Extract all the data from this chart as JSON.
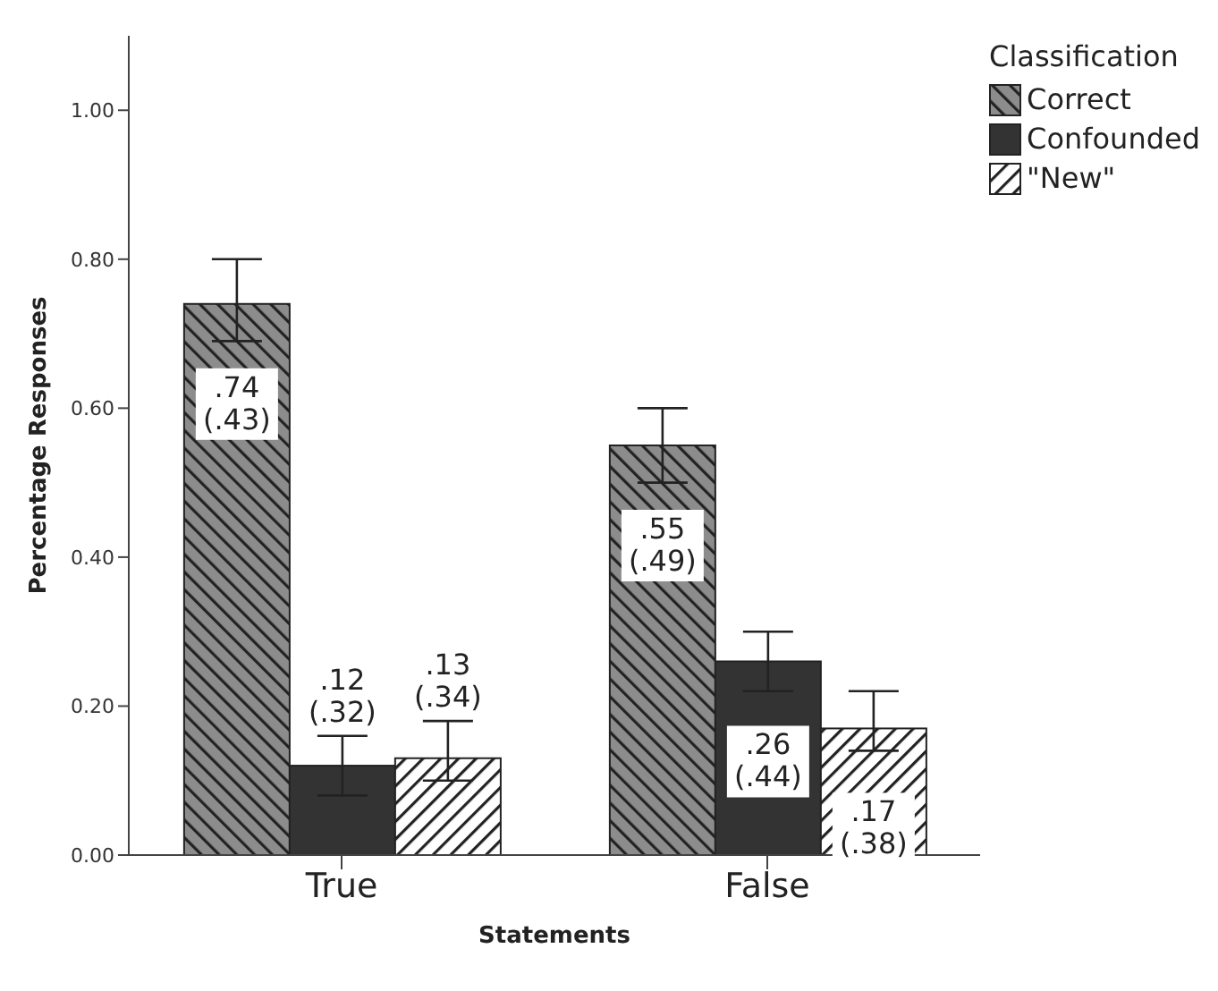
{
  "chart_data": {
    "type": "bar",
    "xlabel": "Statements",
    "ylabel": "Percentage Responses",
    "legend_title": "Classification",
    "legend": "top right",
    "categories": [
      "True",
      "False"
    ],
    "series": [
      {
        "name": "Correct",
        "color": "#8c8c8c",
        "values": [
          0.74,
          0.55
        ],
        "errors": [
          [
            0.69,
            0.8
          ],
          [
            0.5,
            0.6
          ]
        ],
        "value_labels": [
          ".74\n(.43)",
          ".55\n(.49)"
        ]
      },
      {
        "name": "Confounded",
        "color": "#333333",
        "values": [
          0.12,
          0.26
        ],
        "errors": [
          [
            0.08,
            0.16
          ],
          [
            0.22,
            0.3
          ]
        ],
        "value_labels": [
          ".12\n(.32)",
          ".26\n(.44)"
        ]
      },
      {
        "name": "\"New\"",
        "color": "#ffffff",
        "values": [
          0.13,
          0.17
        ],
        "errors": [
          [
            0.1,
            0.18
          ],
          [
            0.14,
            0.22
          ]
        ],
        "value_labels": [
          ".13\n(.34)",
          ".17\n(.38)"
        ]
      }
    ],
    "ylim": [
      0,
      1.1
    ],
    "yticks": [
      {
        "value": 0,
        "label": "0.00"
      },
      {
        "value": 0.2,
        "label": "0.20"
      },
      {
        "value": 0.4,
        "label": "0.40"
      },
      {
        "value": 0.6,
        "label": "0.60"
      },
      {
        "value": 0.8,
        "label": "0.80"
      },
      {
        "value": 1,
        "label": "1.00"
      }
    ],
    "grid": false
  }
}
